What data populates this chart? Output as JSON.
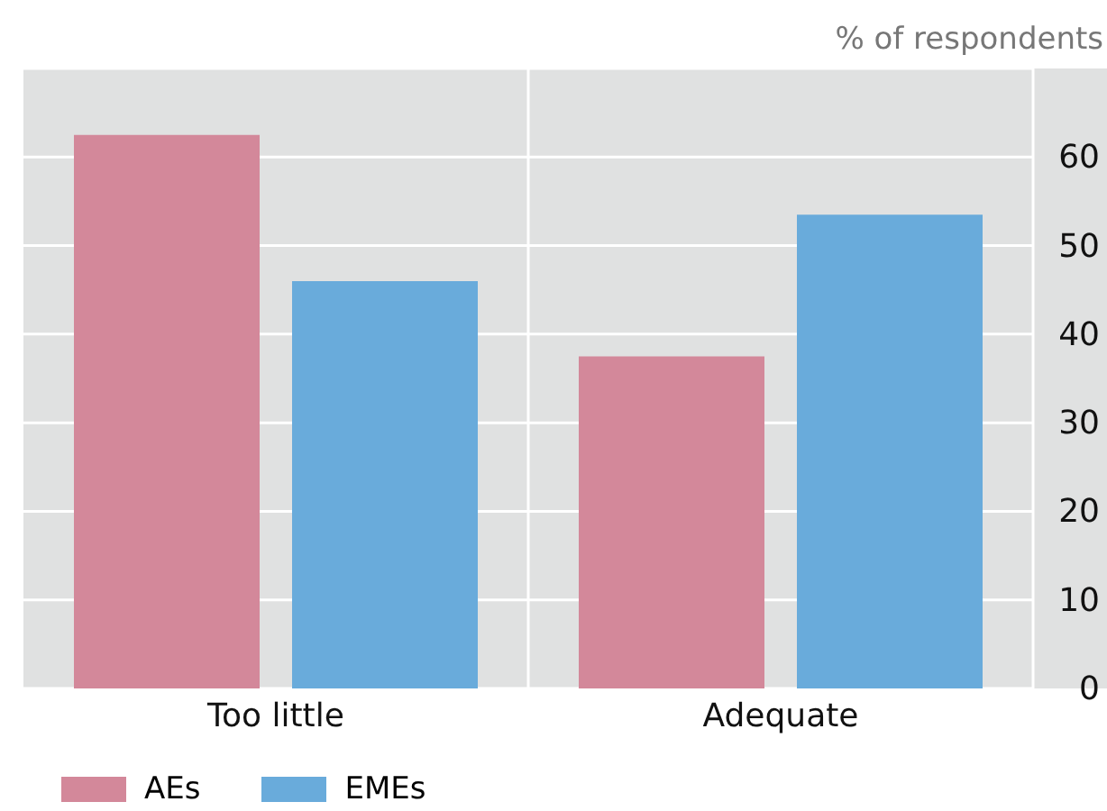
{
  "chart_data": {
    "type": "bar",
    "ylabel": "% of respondents",
    "categories": [
      "Too little",
      "Adequate"
    ],
    "series": [
      {
        "name": "AEs",
        "color": "#d3889a",
        "values": [
          62.5,
          37.5
        ]
      },
      {
        "name": "EMEs",
        "color": "#69abdb",
        "values": [
          46,
          53.5
        ]
      }
    ],
    "ylim": [
      0,
      70
    ],
    "yticks": [
      0,
      10,
      20,
      30,
      40,
      50,
      60
    ],
    "grid": true,
    "legend": "bottom left"
  }
}
